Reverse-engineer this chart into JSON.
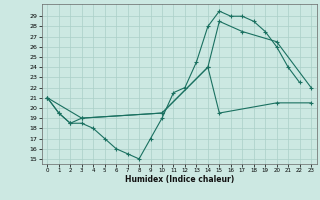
{
  "xlabel": "Humidex (Indice chaleur)",
  "bg_color": "#cce8e2",
  "grid_color": "#aacfc8",
  "line_color": "#1a7060",
  "ylim": [
    14.5,
    30.2
  ],
  "xlim": [
    -0.5,
    23.5
  ],
  "yticks": [
    15,
    16,
    17,
    18,
    19,
    20,
    21,
    22,
    23,
    24,
    25,
    26,
    27,
    28,
    29
  ],
  "xticks": [
    0,
    1,
    2,
    3,
    4,
    5,
    6,
    7,
    8,
    9,
    10,
    11,
    12,
    13,
    14,
    15,
    16,
    17,
    18,
    19,
    20,
    21,
    22,
    23
  ],
  "curve1_x": [
    0,
    1,
    2,
    3,
    4,
    5,
    6,
    7,
    8,
    9,
    10,
    11,
    12,
    13,
    14,
    15,
    16,
    17,
    18,
    19,
    20,
    21,
    22
  ],
  "curve1_y": [
    21,
    19.5,
    18.5,
    18.5,
    18.0,
    17.0,
    16.0,
    15.5,
    15.0,
    17.0,
    19.0,
    21.5,
    22.0,
    24.5,
    28.0,
    29.5,
    29.0,
    29.0,
    28.5,
    27.5,
    26.0,
    24.0,
    22.5
  ],
  "curve2_x": [
    0,
    1,
    2,
    3,
    10,
    14,
    15,
    17,
    20,
    23
  ],
  "curve2_y": [
    21,
    19.5,
    18.5,
    19.0,
    19.5,
    24.0,
    28.5,
    27.5,
    26.5,
    22.0
  ],
  "curve3_x": [
    0,
    3,
    10,
    14,
    15,
    20,
    23
  ],
  "curve3_y": [
    21,
    19.0,
    19.5,
    24.0,
    19.5,
    20.5,
    20.5
  ]
}
